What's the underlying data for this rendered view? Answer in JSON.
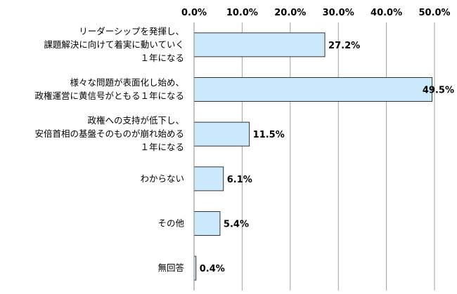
{
  "chart_data": {
    "type": "bar",
    "orientation": "horizontal",
    "categories": [
      [
        "リーダーシップを発揮し、",
        "課題解決に向けて着実に動いていく",
        "１年になる"
      ],
      [
        "様々な問題が表面化し始め、",
        "政権運営に黄信号がともる１年になる"
      ],
      [
        "政権への支持が低下し、",
        "安倍首相の基盤そのものが崩れ始める",
        "１年になる"
      ],
      [
        "わからない"
      ],
      [
        "その他"
      ],
      [
        "無回答"
      ]
    ],
    "values": [
      27.2,
      49.5,
      11.5,
      6.1,
      5.4,
      0.4
    ],
    "value_labels": [
      "27.2%",
      "49.5%",
      "11.5%",
      "6.1%",
      "5.4%",
      "0.4%"
    ],
    "xlim": [
      0,
      50
    ],
    "xticks": [
      "0.0%",
      "10.0%",
      "20.0%",
      "30.0%",
      "40.0%",
      "50.0%"
    ],
    "axis_position": "top",
    "grid": true,
    "legend": "none",
    "bar_color": "#cce9fb",
    "bar_border_color": "#333333"
  }
}
